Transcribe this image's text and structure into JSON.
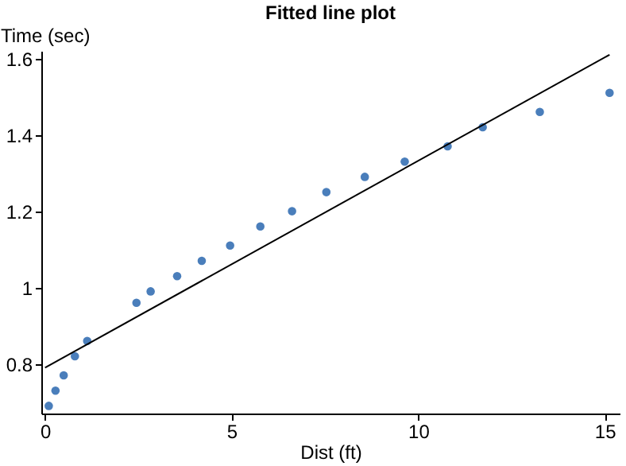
{
  "chart_data": {
    "type": "scatter",
    "title": "Fitted line plot",
    "xlabel": "Dist (ft)",
    "ylabel": "Time (sec)",
    "xlim": [
      -0.1,
      15.4
    ],
    "ylim": [
      0.67,
      1.62
    ],
    "xticks": [
      0,
      5,
      10,
      15
    ],
    "yticks": [
      0.8,
      {
        "value": 1,
        "label": "1"
      },
      1.2,
      1.4,
      1.6
    ],
    "grid": false,
    "series": [
      {
        "type": "scatter",
        "marker": "circle",
        "color": "#4a7ebb",
        "x": [
          0.1,
          0.28,
          0.5,
          0.8,
          1.13,
          2.45,
          2.83,
          3.54,
          4.2,
          4.96,
          5.77,
          6.62,
          7.54,
          8.57,
          9.64,
          10.79,
          11.73,
          13.26,
          15.13
        ],
        "values": [
          0.69,
          0.73,
          0.77,
          0.82,
          0.86,
          0.96,
          0.99,
          1.03,
          1.07,
          1.11,
          1.16,
          1.2,
          1.25,
          1.29,
          1.33,
          1.37,
          1.42,
          1.46,
          1.51
        ]
      },
      {
        "type": "line",
        "color": "#000000",
        "line_style": "solid",
        "x": [
          0,
          15.13
        ],
        "values": [
          0.79,
          1.61
        ]
      }
    ]
  }
}
